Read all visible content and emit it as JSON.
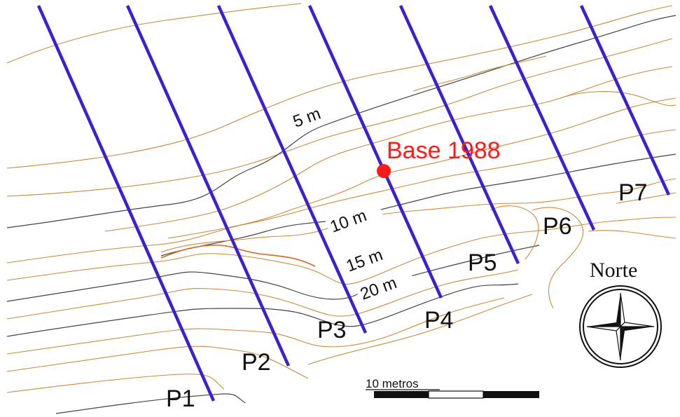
{
  "profiles": [
    {
      "id": "p1",
      "label": "P1"
    },
    {
      "id": "p2",
      "label": "P2"
    },
    {
      "id": "p3",
      "label": "P3"
    },
    {
      "id": "p4",
      "label": "P4"
    },
    {
      "id": "p5",
      "label": "P5"
    },
    {
      "id": "p6",
      "label": "P6"
    },
    {
      "id": "p7",
      "label": "P7"
    }
  ],
  "contour_labels": {
    "c5": "5 m",
    "c10": "10 m",
    "c15": "15 m",
    "c20": "20 m"
  },
  "base_marker": {
    "label": "Base 1988",
    "color": "#ff1a1a"
  },
  "compass": {
    "label": "Norte",
    "icon": "compass-rose-icon"
  },
  "scale_bar": {
    "label": "10 metros",
    "segments": 4
  },
  "colors": {
    "profile_line": "#3a1fd6",
    "contour_minor": "#c98a3a",
    "contour_major": "#444444",
    "base_point": "#ff1a1a"
  }
}
